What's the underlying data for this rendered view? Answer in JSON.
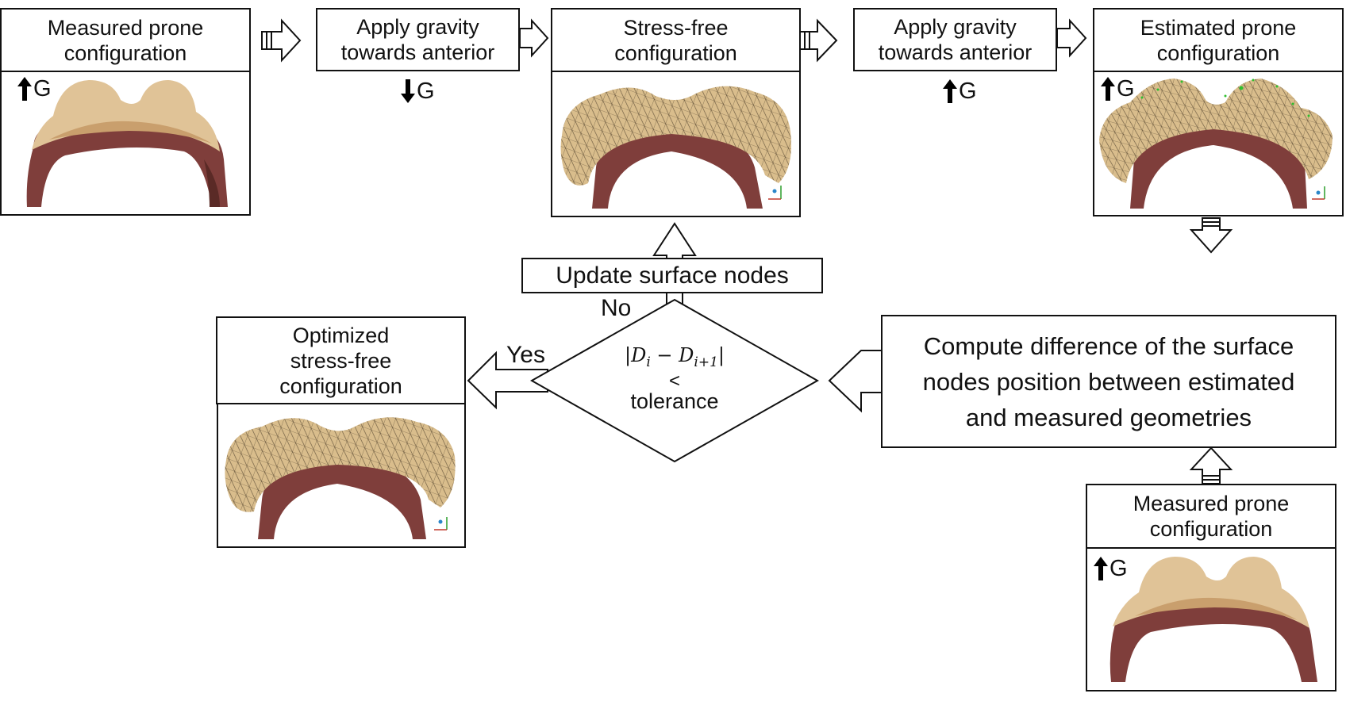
{
  "steps": {
    "measured_prone_top": "Measured prone\nconfiguration",
    "apply_gravity_1": "Apply gravity\ntowards anterior",
    "stress_free": "Stress-free\nconfiguration",
    "apply_gravity_2": "Apply gravity\ntowards anterior",
    "estimated_prone": "Estimated prone\nconfiguration",
    "update_nodes": "Update surface nodes",
    "compute_difference": "Compute difference of the surface\nnodes position between estimated\nand measured geometries",
    "optimized": "Optimized\nstress-free\nconfiguration",
    "measured_prone_bottom": "Measured prone\nconfiguration"
  },
  "gravity_label": "G",
  "decision": {
    "expression": "|D",
    "sub_i": "i",
    "minus": " − D",
    "sub_i1": "i+1",
    "close": "|",
    "operator": "<",
    "tolerance": "tolerance",
    "yes": "Yes",
    "no": "No"
  },
  "colors": {
    "skin": "#e0c397",
    "tissue": "#8a4a45",
    "mesh": "#5a4a33",
    "node": "#2fbf2f"
  }
}
